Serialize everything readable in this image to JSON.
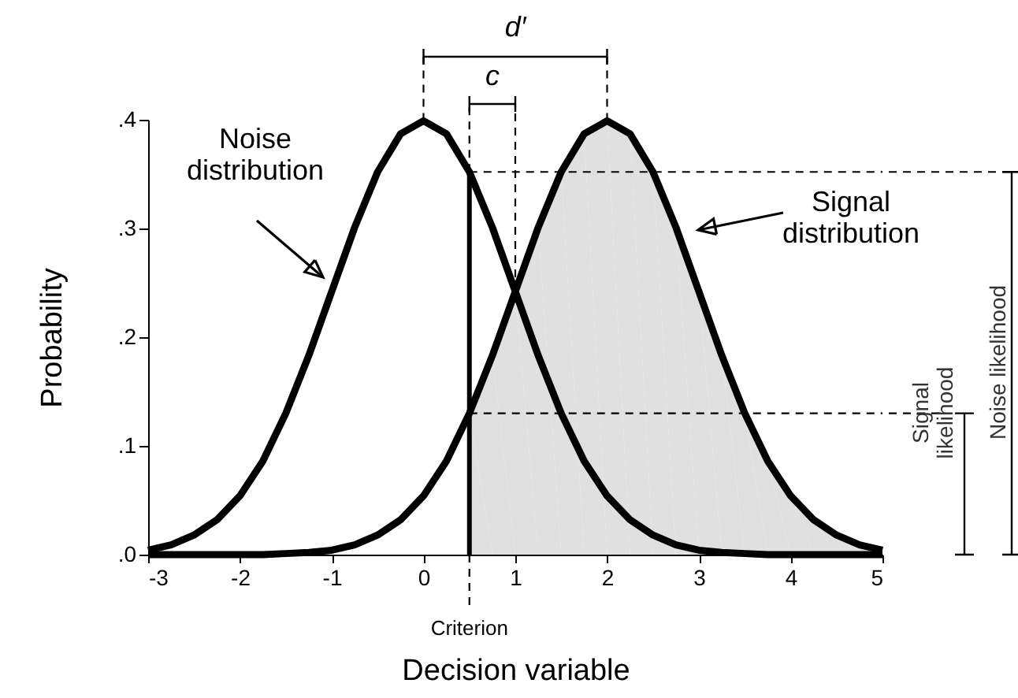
{
  "chart_data": {
    "type": "line",
    "xlabel": "Decision variable",
    "ylabel": "Probability",
    "xlim": [
      -3,
      5
    ],
    "xticks": [
      -3,
      -2,
      -1,
      0,
      1,
      2,
      3,
      4,
      5
    ],
    "ylim": [
      0,
      0.4
    ],
    "yticks": [
      {
        "value": 0,
        "label": ".0"
      },
      {
        "value": 0.1,
        "label": ".1"
      },
      {
        "value": 0.2,
        "label": ".2"
      },
      {
        "value": 0.3,
        "label": ".3"
      },
      {
        "value": 0.4,
        "label": ".4"
      }
    ],
    "grid": false,
    "annotations": [
      "Noise\ndistribution",
      "Signal\ndistribution",
      "d′",
      {
        "text": "c",
        "x": 0.5,
        "y": 0.352
      },
      "Criterion",
      "Noise likelihood",
      "Signal\nlikelihood"
    ],
    "series": [
      {
        "type": "area",
        "color": "#e0e0e0",
        "x": [
          0.5,
          0.75,
          1,
          1.25,
          1.5,
          1.75,
          2,
          2.25,
          2.5,
          2.75,
          3,
          3.25,
          3.5,
          3.75,
          4,
          4.25,
          4.5,
          4.75,
          5
        ],
        "values": [
          0.13,
          0.183,
          0.242,
          0.301,
          0.352,
          0.387,
          0.399,
          0.387,
          0.352,
          0.301,
          0.242,
          0.183,
          0.13,
          0.086,
          0.054,
          0.032,
          0.018,
          0.009,
          0.004
        ]
      },
      {
        "type": "line",
        "color": "#000000",
        "x": [
          -3,
          -2.75,
          -2.5,
          -2.25,
          -2,
          -1.75,
          -1.5,
          -1.25,
          -1,
          -0.75,
          -0.5,
          -0.25,
          0,
          0.25,
          0.5,
          0.75,
          1,
          1.25,
          1.5,
          1.75,
          2,
          2.25,
          2.5,
          2.75,
          3,
          3.25,
          3.5,
          3.75,
          4,
          4.25,
          4.5,
          4.75,
          5
        ],
        "values": [
          0.004,
          0.009,
          0.018,
          0.032,
          0.054,
          0.086,
          0.13,
          0.183,
          0.242,
          0.301,
          0.352,
          0.387,
          0.399,
          0.387,
          0.352,
          0.301,
          0.242,
          0.183,
          0.13,
          0.086,
          0.054,
          0.032,
          0.018,
          0.009,
          0.004,
          0.002,
          0.001,
          0,
          0,
          0,
          0,
          0,
          0
        ]
      },
      {
        "type": "line",
        "color": "#000000",
        "x": [
          -3,
          -2.75,
          -2.5,
          -2.25,
          -2,
          -1.75,
          -1.5,
          -1.25,
          -1,
          -0.75,
          -0.5,
          -0.25,
          0,
          0.25,
          0.5,
          0.75,
          1,
          1.25,
          1.5,
          1.75,
          2,
          2.25,
          2.5,
          2.75,
          3,
          3.25,
          3.5,
          3.75,
          4,
          4.25,
          4.5,
          4.75,
          5
        ],
        "values": [
          0,
          0,
          0,
          0,
          0,
          0,
          0.001,
          0.002,
          0.004,
          0.009,
          0.018,
          0.032,
          0.054,
          0.086,
          0.13,
          0.183,
          0.242,
          0.301,
          0.352,
          0.387,
          0.399,
          0.387,
          0.352,
          0.301,
          0.242,
          0.183,
          0.13,
          0.086,
          0.054,
          0.032,
          0.018,
          0.009,
          0.004
        ]
      },
      {
        "type": "line",
        "color": "#000000",
        "x": [
          0.5,
          0.5
        ],
        "values": [
          0,
          0.352
        ]
      },
      {
        "type": "line",
        "color": "#000000",
        "line_style": "dashed",
        "x": [
          0.5,
          5
        ],
        "values": [
          0.352,
          0.352
        ]
      },
      {
        "type": "line",
        "color": "#000000",
        "line_style": "dashed",
        "x": [
          0.5,
          5
        ],
        "values": [
          0.13,
          0.13
        ]
      }
    ]
  }
}
